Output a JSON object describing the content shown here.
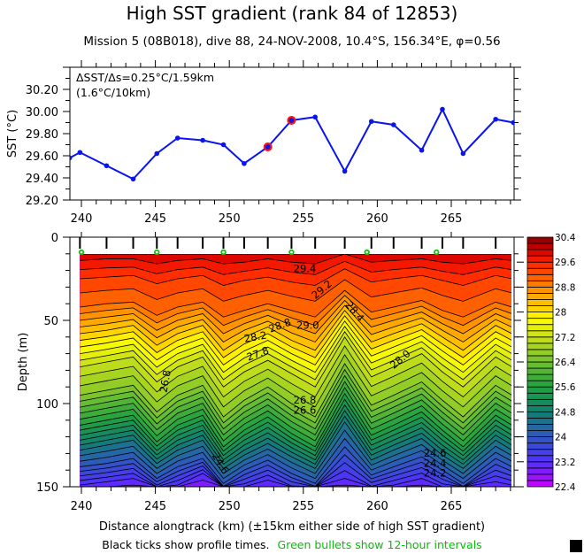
{
  "title": "High SST gradient (rank 84 of 12853)",
  "subtitle": "Mission 5 (08B018),  dive 88,  24-NOV-2008,  10.4°S, 156.34°E,  φ=0.56",
  "footer": {
    "black_note": "Black ticks show profile times.",
    "green_note": "Green bullets show 12-hour intervals"
  },
  "colors": {
    "sst_line": "#0a14f0",
    "highlight_marker": "#ff1010",
    "green_bullet": "#10c010",
    "footer_green": "#00c000"
  },
  "chart_data": [
    {
      "type": "line",
      "ylabel": "SST (°C)",
      "annotation": [
        "ΔSST/Δs=0.25°C/1.59km",
        "(1.6°C/10km)"
      ],
      "xlim": [
        239.2,
        269.2
      ],
      "ylim": [
        29.2,
        30.4
      ],
      "x_ticks": [
        "240",
        "245",
        "250",
        "255",
        "260",
        "265"
      ],
      "y_ticks": [
        "29.20",
        "29.40",
        "29.60",
        "29.80",
        "30.00",
        "30.20"
      ],
      "x": [
        239.2,
        239.9,
        241.7,
        243.5,
        245.1,
        246.5,
        248.2,
        249.6,
        251.0,
        252.6,
        254.2,
        255.8,
        257.8,
        259.6,
        261.1,
        263.0,
        264.4,
        265.8,
        268.0,
        269.2
      ],
      "y": [
        29.58,
        29.63,
        29.51,
        29.39,
        29.62,
        29.76,
        29.74,
        29.7,
        29.53,
        29.68,
        29.92,
        29.95,
        29.46,
        29.91,
        29.88,
        29.65,
        30.02,
        29.62,
        29.93,
        29.9
      ],
      "highlighted_points": [
        9,
        10
      ],
      "grid": false
    },
    {
      "type": "contour",
      "xlabel": "Distance alongtrack (km) (±15km either side of high SST gradient)",
      "ylabel": "Depth (m)",
      "xlim": [
        239.2,
        269.2
      ],
      "ylim": [
        150,
        0
      ],
      "x_ticks": [
        "240",
        "245",
        "250",
        "255",
        "260",
        "265"
      ],
      "y_ticks": [
        "0",
        "50",
        "100",
        "150"
      ],
      "profile_km": [
        239.9,
        241.7,
        243.5,
        245.1,
        246.5,
        248.2,
        249.6,
        251.0,
        252.6,
        254.2,
        255.8,
        257.8,
        259.6,
        261.1,
        263.0,
        264.4,
        265.8,
        268.0,
        269.1
      ],
      "green_bullets_km": [
        240.0,
        245.1,
        249.6,
        254.2,
        259.3,
        264.0
      ],
      "data_depth_range": [
        10,
        150
      ],
      "contour_interval": 0.2,
      "isotherm_depths": {
        "30.0": [
          9,
          9,
          9,
          9,
          9,
          9,
          9,
          9,
          9,
          9,
          9,
          9,
          9,
          9,
          9,
          9,
          9,
          9,
          9
        ],
        "29.8": [
          14,
          13,
          13,
          16,
          14,
          13,
          16,
          15,
          13,
          15,
          16,
          10,
          15,
          14,
          13,
          15,
          16,
          13,
          14
        ],
        "29.4": [
          25,
          24,
          23,
          28,
          25,
          23,
          29,
          26,
          24,
          27,
          29,
          19,
          27,
          25,
          23,
          26,
          29,
          23,
          25
        ],
        "29.0": [
          42,
          40,
          39,
          47,
          42,
          39,
          48,
          44,
          40,
          44,
          48,
          32,
          45,
          42,
          38,
          44,
          48,
          39,
          42
        ],
        "28.2": [
          58,
          56,
          53,
          65,
          58,
          53,
          68,
          60,
          54,
          62,
          68,
          44,
          63,
          58,
          52,
          60,
          68,
          53,
          58
        ],
        "27.2": [
          78,
          75,
          72,
          87,
          78,
          72,
          90,
          81,
          74,
          82,
          90,
          60,
          84,
          78,
          70,
          81,
          90,
          72,
          78
        ],
        "26.6": [
          95,
          92,
          89,
          105,
          95,
          89,
          108,
          98,
          90,
          100,
          108,
          76,
          101,
          95,
          87,
          98,
          108,
          89,
          95
        ],
        "25.6": [
          113,
          110,
          107,
          123,
          113,
          107,
          126,
          116,
          108,
          118,
          126,
          94,
          119,
          113,
          105,
          116,
          126,
          107,
          113
        ],
        "24.6": [
          128,
          125,
          122,
          136,
          128,
          122,
          139,
          131,
          124,
          132,
          139,
          111,
          134,
          128,
          121,
          131,
          139,
          122,
          128
        ],
        "24.0": [
          138,
          136,
          133,
          145,
          138,
          133,
          148,
          140,
          134,
          142,
          148,
          126,
          143,
          138,
          132,
          140,
          148,
          133,
          138
        ],
        "23.2": [
          149,
          147,
          145,
          153,
          149,
          142,
          155,
          151,
          146,
          152,
          155,
          145,
          152,
          149,
          145,
          151,
          155,
          147,
          149
        ]
      },
      "contour_labels": [
        {
          "text": "29.4",
          "km": 255.1,
          "depth": 21,
          "angle": 0
        },
        {
          "text": "29.2",
          "km": 256.4,
          "depth": 33,
          "angle": -40
        },
        {
          "text": "29.0",
          "km": 255.3,
          "depth": 55,
          "angle": 0
        },
        {
          "text": "28.8",
          "km": 253.5,
          "depth": 55,
          "angle": -20
        },
        {
          "text": "28.2",
          "km": 251.8,
          "depth": 62,
          "angle": -10
        },
        {
          "text": "27.8",
          "km": 252.0,
          "depth": 72,
          "angle": -20
        },
        {
          "text": "28.4",
          "km": 258.3,
          "depth": 46,
          "angle": 50
        },
        {
          "text": "28.0",
          "km": 261.7,
          "depth": 75,
          "angle": -40
        },
        {
          "text": "26.8",
          "km": 245.9,
          "depth": 87,
          "angle": -80
        },
        {
          "text": "26.8",
          "km": 255.1,
          "depth": 100,
          "angle": 0
        },
        {
          "text": "26.6",
          "km": 255.1,
          "depth": 106,
          "angle": 0
        },
        {
          "text": "24.6",
          "km": 249.2,
          "depth": 137,
          "angle": 60
        },
        {
          "text": "24.6",
          "km": 263.9,
          "depth": 132,
          "angle": 0
        },
        {
          "text": "24.4",
          "km": 263.9,
          "depth": 138,
          "angle": 0
        },
        {
          "text": "24.2",
          "km": 263.9,
          "depth": 144,
          "angle": 0
        }
      ],
      "colorbar": {
        "range": [
          22.4,
          30.4
        ],
        "tick_labels": [
          "22.4",
          "23.2",
          "24",
          "24.8",
          "25.6",
          "26.4",
          "27.2",
          "28",
          "28.8",
          "29.6",
          "30.4"
        ],
        "palette_stops": [
          {
            "value": 22.4,
            "color": "#cc00ff"
          },
          {
            "value": 23.2,
            "color": "#5030ff"
          },
          {
            "value": 24.0,
            "color": "#3058c0"
          },
          {
            "value": 24.8,
            "color": "#108070"
          },
          {
            "value": 25.6,
            "color": "#20a040"
          },
          {
            "value": 26.4,
            "color": "#70c030"
          },
          {
            "value": 27.2,
            "color": "#c8e018"
          },
          {
            "value": 27.8,
            "color": "#ffff00"
          },
          {
            "value": 28.0,
            "color": "#ffe000"
          },
          {
            "value": 28.8,
            "color": "#ff8800"
          },
          {
            "value": 29.6,
            "color": "#ff2000"
          },
          {
            "value": 30.0,
            "color": "#d00000"
          },
          {
            "value": 30.4,
            "color": "#800000"
          }
        ]
      }
    }
  ]
}
